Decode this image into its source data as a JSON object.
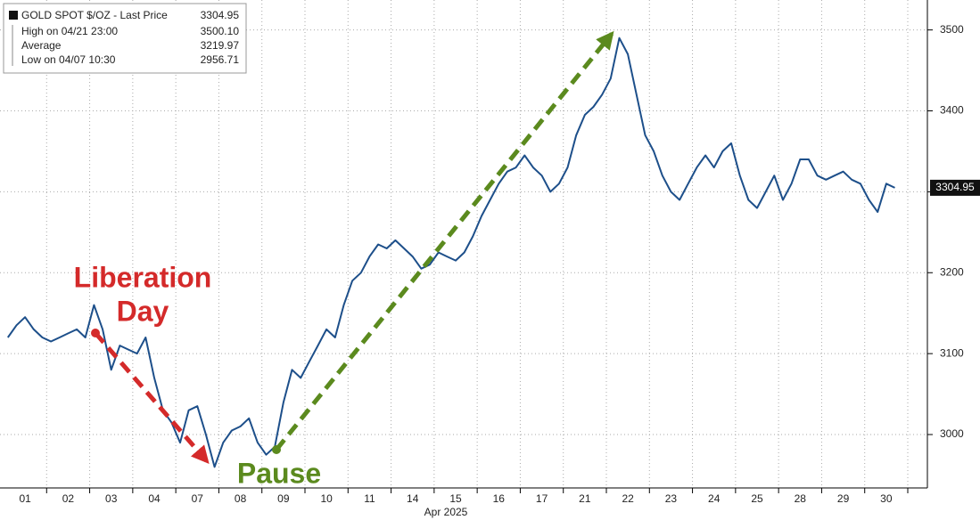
{
  "chart_data": {
    "type": "line",
    "legend": {
      "title": "GOLD SPOT $/OZ - Last Price",
      "last": "3304.95",
      "rows": [
        {
          "label": "High on 04/21 23:00",
          "value": "3500.10"
        },
        {
          "label": "Average",
          "value": "3219.97"
        },
        {
          "label": "Low on 04/07 10:30",
          "value": "2956.71"
        }
      ]
    },
    "x_label": "Apr 2025",
    "annotations": [
      {
        "lines": [
          "Liberation",
          "Day"
        ]
      },
      {
        "lines": [
          "Pause"
        ]
      }
    ],
    "categories": [
      null,
      null,
      "01",
      null,
      null,
      null,
      null,
      "02",
      null,
      null,
      null,
      null,
      "03",
      null,
      null,
      null,
      null,
      "04",
      null,
      null,
      null,
      null,
      "07",
      null,
      null,
      null,
      null,
      "08",
      null,
      null,
      null,
      null,
      "09",
      null,
      null,
      null,
      null,
      "10",
      null,
      null,
      null,
      null,
      "11",
      null,
      null,
      null,
      null,
      "14",
      null,
      null,
      null,
      null,
      "15",
      null,
      null,
      null,
      null,
      "16",
      null,
      null,
      null,
      null,
      "17",
      null,
      null,
      null,
      null,
      "21",
      null,
      null,
      null,
      null,
      "22",
      null,
      null,
      null,
      null,
      "23",
      null,
      null,
      null,
      null,
      "24",
      null,
      null,
      null,
      null,
      "25",
      null,
      null,
      null,
      null,
      "28",
      null,
      null,
      null,
      null,
      "29",
      null,
      null,
      null,
      null,
      "30",
      null,
      null
    ],
    "series": [
      {
        "name": "GOLD SPOT $/OZ",
        "color": "#1d4f8a",
        "values": [
          3120,
          3135,
          3145,
          3130,
          3120,
          3115,
          3120,
          3125,
          3130,
          3120,
          3160,
          3130,
          3080,
          3110,
          3105,
          3100,
          3120,
          3070,
          3030,
          3015,
          2990,
          3030,
          3035,
          3000,
          2960,
          2990,
          3005,
          3010,
          3020,
          2990,
          2975,
          2985,
          3040,
          3080,
          3070,
          3090,
          3110,
          3130,
          3120,
          3160,
          3190,
          3200,
          3220,
          3235,
          3230,
          3240,
          3230,
          3220,
          3205,
          3210,
          3225,
          3220,
          3215,
          3225,
          3245,
          3270,
          3290,
          3310,
          3325,
          3330,
          3345,
          3330,
          3320,
          3300,
          3310,
          3330,
          3370,
          3395,
          3405,
          3420,
          3440,
          3490,
          3470,
          3420,
          3370,
          3350,
          3320,
          3300,
          3290,
          3310,
          3330,
          3345,
          3330,
          3350,
          3360,
          3320,
          3290,
          3280,
          3300,
          3320,
          3290,
          3310,
          3340,
          3340,
          3320,
          3315,
          3320,
          3325,
          3315,
          3310,
          3290,
          3275,
          3310,
          3304.95,
          null
        ]
      }
    ],
    "ylim": [
      2934,
      3537
    ],
    "yticks": [
      3000,
      3100,
      3200,
      3300,
      3400,
      3500
    ],
    "grid": true
  }
}
